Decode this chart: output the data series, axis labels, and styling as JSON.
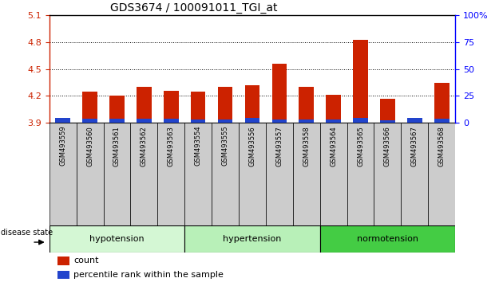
{
  "title": "GDS3674 / 100091011_TGI_at",
  "samples": [
    "GSM493559",
    "GSM493560",
    "GSM493561",
    "GSM493562",
    "GSM493563",
    "GSM493554",
    "GSM493555",
    "GSM493556",
    "GSM493557",
    "GSM493558",
    "GSM493564",
    "GSM493565",
    "GSM493566",
    "GSM493567",
    "GSM493568"
  ],
  "red_values": [
    3.91,
    4.25,
    4.2,
    4.3,
    4.26,
    4.25,
    4.3,
    4.32,
    4.56,
    4.3,
    4.21,
    4.83,
    4.17,
    3.93,
    4.35
  ],
  "blue_values": [
    0.055,
    0.045,
    0.045,
    0.045,
    0.045,
    0.04,
    0.04,
    0.055,
    0.04,
    0.04,
    0.04,
    0.055,
    0.03,
    0.055,
    0.045
  ],
  "groups": [
    {
      "label": "hypotension",
      "start": 0,
      "end": 5,
      "color": "#d4f7d4"
    },
    {
      "label": "hypertension",
      "start": 5,
      "end": 10,
      "color": "#b8f0b8"
    },
    {
      "label": "normotension",
      "start": 10,
      "end": 15,
      "color": "#44cc44"
    }
  ],
  "ylim_left": [
    3.9,
    5.1
  ],
  "ylim_right": [
    0,
    100
  ],
  "yticks_left": [
    3.9,
    4.2,
    4.5,
    4.8,
    5.1
  ],
  "yticks_right": [
    0,
    25,
    50,
    75,
    100
  ],
  "ytick_right_labels": [
    "0",
    "25",
    "50",
    "75",
    "100%"
  ],
  "bar_width": 0.55,
  "base": 3.9,
  "red_color": "#cc2200",
  "blue_color": "#2244cc",
  "tick_bg": "#cccccc",
  "disease_state_label": "disease state"
}
